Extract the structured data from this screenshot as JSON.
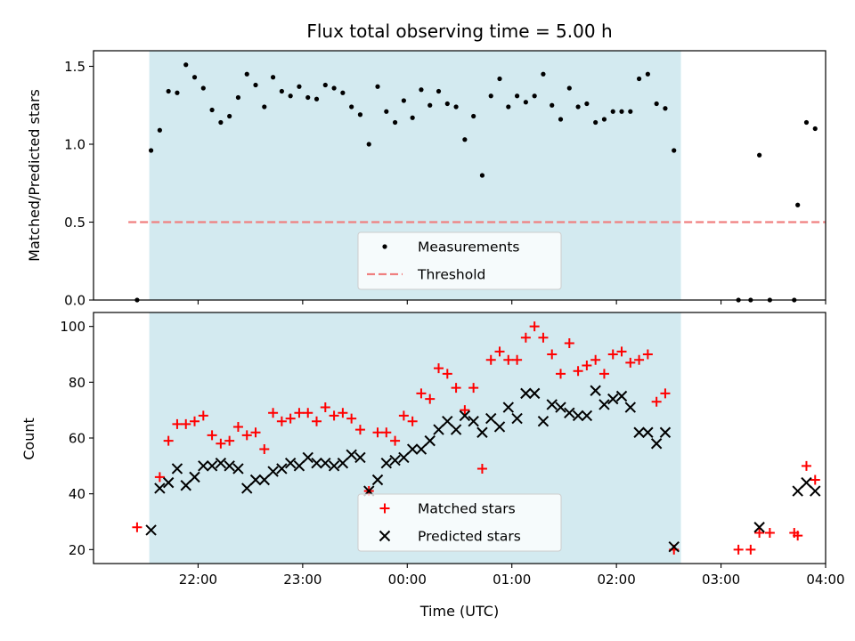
{
  "chart_data": [
    {
      "type": "scatter",
      "title": "Flux total observing time = 5.00 h",
      "xlabel": "",
      "ylabel": "Matched/Predicted stars",
      "xlim_hours": [
        21.0,
        28.0
      ],
      "ylim": [
        0,
        1.6
      ],
      "x_ticks": [
        "22:00",
        "23:00",
        "00:00",
        "01:00",
        "02:00",
        "03:00",
        "04:00"
      ],
      "y_ticks": [
        "0.0",
        "0.5",
        "1.0",
        "1.5"
      ],
      "shaded_interval": [
        "21:32",
        "02:37"
      ],
      "shade_color": "#d3eaf0",
      "legend_position": "lower center",
      "series": [
        {
          "name": "Measurements",
          "marker": "dot",
          "color": "#000000",
          "points": [
            [
              "21:25",
              0.0
            ],
            [
              "21:33",
              0.96
            ],
            [
              "21:38",
              1.09
            ],
            [
              "21:43",
              1.34
            ],
            [
              "21:48",
              1.33
            ],
            [
              "21:53",
              1.51
            ],
            [
              "21:58",
              1.43
            ],
            [
              "22:03",
              1.36
            ],
            [
              "22:08",
              1.22
            ],
            [
              "22:13",
              1.14
            ],
            [
              "22:18",
              1.18
            ],
            [
              "22:23",
              1.3
            ],
            [
              "22:28",
              1.45
            ],
            [
              "22:33",
              1.38
            ],
            [
              "22:38",
              1.24
            ],
            [
              "22:43",
              1.43
            ],
            [
              "22:48",
              1.34
            ],
            [
              "22:53",
              1.31
            ],
            [
              "22:58",
              1.37
            ],
            [
              "23:03",
              1.3
            ],
            [
              "23:08",
              1.29
            ],
            [
              "23:13",
              1.38
            ],
            [
              "23:18",
              1.36
            ],
            [
              "23:23",
              1.33
            ],
            [
              "23:28",
              1.24
            ],
            [
              "23:33",
              1.19
            ],
            [
              "23:38",
              1.0
            ],
            [
              "23:43",
              1.37
            ],
            [
              "23:48",
              1.21
            ],
            [
              "23:53",
              1.14
            ],
            [
              "23:58",
              1.28
            ],
            [
              "00:03",
              1.17
            ],
            [
              "00:08",
              1.35
            ],
            [
              "00:13",
              1.25
            ],
            [
              "00:18",
              1.34
            ],
            [
              "00:23",
              1.26
            ],
            [
              "00:28",
              1.24
            ],
            [
              "00:33",
              1.03
            ],
            [
              "00:38",
              1.18
            ],
            [
              "00:43",
              0.8
            ],
            [
              "00:48",
              1.31
            ],
            [
              "00:53",
              1.42
            ],
            [
              "00:58",
              1.24
            ],
            [
              "01:03",
              1.31
            ],
            [
              "01:08",
              1.27
            ],
            [
              "01:13",
              1.31
            ],
            [
              "01:18",
              1.45
            ],
            [
              "01:23",
              1.25
            ],
            [
              "01:28",
              1.16
            ],
            [
              "01:33",
              1.36
            ],
            [
              "01:38",
              1.24
            ],
            [
              "01:43",
              1.26
            ],
            [
              "01:48",
              1.14
            ],
            [
              "01:53",
              1.16
            ],
            [
              "01:58",
              1.21
            ],
            [
              "02:03",
              1.21
            ],
            [
              "02:08",
              1.21
            ],
            [
              "02:13",
              1.42
            ],
            [
              "02:18",
              1.45
            ],
            [
              "02:23",
              1.26
            ],
            [
              "02:28",
              1.23
            ],
            [
              "02:33",
              0.96
            ],
            [
              "03:10",
              0.0
            ],
            [
              "03:17",
              0.0
            ],
            [
              "03:22",
              0.93
            ],
            [
              "03:28",
              0.0
            ],
            [
              "03:42",
              0.0
            ],
            [
              "03:44",
              0.61
            ],
            [
              "03:49",
              1.14
            ],
            [
              "03:54",
              1.1
            ]
          ]
        },
        {
          "name": "Threshold",
          "marker": "dashed-line",
          "color": "#f08080",
          "points": [
            [
              "21:20",
              0.5
            ],
            [
              "04:00",
              0.5
            ]
          ]
        }
      ]
    },
    {
      "type": "scatter",
      "title": "",
      "xlabel": "Time (UTC)",
      "ylabel": "Count",
      "xlim_hours": [
        21.0,
        28.0
      ],
      "ylim": [
        15,
        105
      ],
      "x_ticks": [
        "22:00",
        "23:00",
        "00:00",
        "01:00",
        "02:00",
        "03:00",
        "04:00"
      ],
      "y_ticks": [
        "20",
        "40",
        "60",
        "80",
        "100"
      ],
      "shaded_interval": [
        "21:32",
        "02:37"
      ],
      "shade_color": "#d3eaf0",
      "legend_position": "lower center",
      "series": [
        {
          "name": "Matched stars",
          "marker": "plus",
          "color": "#ff0000",
          "points": [
            [
              "21:25",
              28
            ],
            [
              "21:38",
              46
            ],
            [
              "21:43",
              59
            ],
            [
              "21:48",
              65
            ],
            [
              "21:53",
              65
            ],
            [
              "21:58",
              66
            ],
            [
              "22:03",
              68
            ],
            [
              "22:08",
              61
            ],
            [
              "22:13",
              58
            ],
            [
              "22:18",
              59
            ],
            [
              "22:23",
              64
            ],
            [
              "22:28",
              61
            ],
            [
              "22:33",
              62
            ],
            [
              "22:38",
              56
            ],
            [
              "22:43",
              69
            ],
            [
              "22:48",
              66
            ],
            [
              "22:53",
              67
            ],
            [
              "22:58",
              69
            ],
            [
              "23:03",
              69
            ],
            [
              "23:08",
              66
            ],
            [
              "23:13",
              71
            ],
            [
              "23:18",
              68
            ],
            [
              "23:23",
              69
            ],
            [
              "23:28",
              67
            ],
            [
              "23:33",
              63
            ],
            [
              "23:38",
              41
            ],
            [
              "23:43",
              62
            ],
            [
              "23:48",
              62
            ],
            [
              "23:53",
              59
            ],
            [
              "23:58",
              68
            ],
            [
              "00:03",
              66
            ],
            [
              "00:08",
              76
            ],
            [
              "00:13",
              74
            ],
            [
              "00:18",
              85
            ],
            [
              "00:23",
              83
            ],
            [
              "00:28",
              78
            ],
            [
              "00:33",
              70
            ],
            [
              "00:38",
              78
            ],
            [
              "00:43",
              49
            ],
            [
              "00:48",
              88
            ],
            [
              "00:53",
              91
            ],
            [
              "00:58",
              88
            ],
            [
              "01:03",
              88
            ],
            [
              "01:08",
              96
            ],
            [
              "01:13",
              100
            ],
            [
              "01:18",
              96
            ],
            [
              "01:23",
              90
            ],
            [
              "01:28",
              83
            ],
            [
              "01:33",
              94
            ],
            [
              "01:38",
              84
            ],
            [
              "01:43",
              86
            ],
            [
              "01:48",
              88
            ],
            [
              "01:53",
              83
            ],
            [
              "01:58",
              90
            ],
            [
              "02:03",
              91
            ],
            [
              "02:08",
              87
            ],
            [
              "02:13",
              88
            ],
            [
              "02:18",
              90
            ],
            [
              "02:23",
              73
            ],
            [
              "02:28",
              76
            ],
            [
              "02:33",
              20
            ],
            [
              "03:10",
              20
            ],
            [
              "03:17",
              20
            ],
            [
              "03:22",
              26
            ],
            [
              "03:28",
              26
            ],
            [
              "03:42",
              26
            ],
            [
              "03:44",
              25
            ],
            [
              "03:49",
              50
            ],
            [
              "03:54",
              45
            ]
          ]
        },
        {
          "name": "Predicted stars",
          "marker": "x",
          "color": "#000000",
          "points": [
            [
              "21:33",
              27
            ],
            [
              "21:38",
              42
            ],
            [
              "21:43",
              44
            ],
            [
              "21:48",
              49
            ],
            [
              "21:53",
              43
            ],
            [
              "21:58",
              46
            ],
            [
              "22:03",
              50
            ],
            [
              "22:08",
              50
            ],
            [
              "22:13",
              51
            ],
            [
              "22:18",
              50
            ],
            [
              "22:23",
              49
            ],
            [
              "22:28",
              42
            ],
            [
              "22:33",
              45
            ],
            [
              "22:38",
              45
            ],
            [
              "22:43",
              48
            ],
            [
              "22:48",
              49
            ],
            [
              "22:53",
              51
            ],
            [
              "22:58",
              50
            ],
            [
              "23:03",
              53
            ],
            [
              "23:08",
              51
            ],
            [
              "23:13",
              51
            ],
            [
              "23:18",
              50
            ],
            [
              "23:23",
              51
            ],
            [
              "23:28",
              54
            ],
            [
              "23:33",
              53
            ],
            [
              "23:38",
              41
            ],
            [
              "23:43",
              45
            ],
            [
              "23:48",
              51
            ],
            [
              "23:53",
              52
            ],
            [
              "23:58",
              53
            ],
            [
              "00:03",
              56
            ],
            [
              "00:08",
              56
            ],
            [
              "00:13",
              59
            ],
            [
              "00:18",
              63
            ],
            [
              "00:23",
              66
            ],
            [
              "00:28",
              63
            ],
            [
              "00:33",
              68
            ],
            [
              "00:38",
              66
            ],
            [
              "00:43",
              62
            ],
            [
              "00:48",
              67
            ],
            [
              "00:53",
              64
            ],
            [
              "00:58",
              71
            ],
            [
              "01:03",
              67
            ],
            [
              "01:08",
              76
            ],
            [
              "01:13",
              76
            ],
            [
              "01:18",
              66
            ],
            [
              "01:23",
              72
            ],
            [
              "01:28",
              71
            ],
            [
              "01:33",
              69
            ],
            [
              "01:38",
              68
            ],
            [
              "01:43",
              68
            ],
            [
              "01:48",
              77
            ],
            [
              "01:53",
              72
            ],
            [
              "01:58",
              74
            ],
            [
              "02:03",
              75
            ],
            [
              "02:08",
              71
            ],
            [
              "02:13",
              62
            ],
            [
              "02:18",
              62
            ],
            [
              "02:23",
              58
            ],
            [
              "02:28",
              62
            ],
            [
              "02:33",
              21
            ],
            [
              "03:22",
              28
            ],
            [
              "03:44",
              41
            ],
            [
              "03:49",
              44
            ],
            [
              "03:54",
              41
            ]
          ]
        }
      ]
    }
  ]
}
